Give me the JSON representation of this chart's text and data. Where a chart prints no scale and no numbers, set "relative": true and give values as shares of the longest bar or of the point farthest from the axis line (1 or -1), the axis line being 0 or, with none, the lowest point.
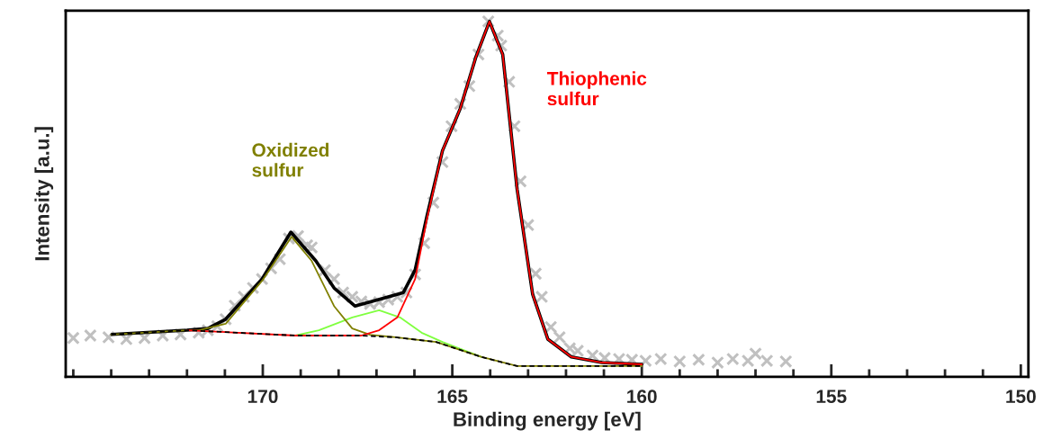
{
  "chart_data": {
    "type": "line",
    "relative": true,
    "xlabel": "Binding energy [eV]",
    "ylabel": "Intensity [a.u.]",
    "xlim": [
      175.2,
      149.8
    ],
    "xticks": [
      {
        "value": 175,
        "label": null
      },
      {
        "value": 174,
        "label": null
      },
      {
        "value": 173,
        "label": null
      },
      {
        "value": 172,
        "label": null
      },
      {
        "value": 171,
        "label": null
      },
      170,
      {
        "value": 169,
        "label": null
      },
      {
        "value": 168,
        "label": null
      },
      {
        "value": 167,
        "label": null
      },
      {
        "value": 166,
        "label": null
      },
      165,
      {
        "value": 164,
        "label": null
      },
      {
        "value": 163,
        "label": null
      },
      {
        "value": 162,
        "label": null
      },
      {
        "value": 161,
        "label": null
      },
      160,
      {
        "value": 159,
        "label": null
      },
      {
        "value": 158,
        "label": null
      },
      {
        "value": 157,
        "label": null
      },
      {
        "value": 156,
        "label": null
      },
      155,
      {
        "value": 154,
        "label": null
      },
      {
        "value": 153,
        "label": null
      },
      {
        "value": 152,
        "label": null
      },
      {
        "value": 151,
        "label": null
      },
      150
    ],
    "grid": false,
    "legend": false,
    "series": [
      {
        "type": "scatter",
        "marker": "cross",
        "color": "#c0c0c0",
        "x": [
          175.0,
          174.55,
          174.07,
          173.6,
          173.12,
          172.64,
          172.17,
          171.69,
          171.45,
          171.2,
          170.98,
          170.74,
          170.5,
          170.26,
          170.02,
          169.78,
          169.55,
          169.31,
          169.07,
          168.83,
          168.71,
          168.36,
          168.12,
          167.88,
          167.64,
          167.4,
          167.17,
          166.93,
          166.69,
          166.45,
          166.21,
          165.98,
          165.74,
          165.5,
          165.26,
          165.02,
          164.79,
          164.55,
          164.31,
          164.05,
          163.8,
          163.71,
          163.5,
          163.36,
          163.2,
          163.0,
          162.8,
          162.64,
          162.4,
          162.17,
          161.9,
          161.69,
          161.3,
          160.98,
          160.6,
          160.26,
          159.9,
          159.5,
          159.0,
          158.5,
          158.0,
          157.6,
          157.2,
          157.0,
          156.7,
          156.2
        ],
        "values": [
          0.109,
          0.116,
          0.111,
          0.106,
          0.109,
          0.116,
          0.119,
          0.124,
          0.131,
          0.142,
          0.162,
          0.2,
          0.225,
          0.25,
          0.275,
          0.305,
          0.331,
          0.389,
          0.396,
          0.37,
          0.364,
          0.3,
          0.275,
          0.237,
          0.225,
          0.212,
          0.205,
          0.21,
          0.217,
          0.225,
          0.237,
          0.288,
          0.376,
          0.49,
          0.604,
          0.705,
          0.768,
          0.818,
          0.907,
          1.0,
          0.96,
          0.932,
          0.83,
          0.705,
          0.55,
          0.427,
          0.29,
          0.225,
          0.14,
          0.111,
          0.08,
          0.073,
          0.06,
          0.053,
          0.05,
          0.048,
          0.045,
          0.05,
          0.043,
          0.048,
          0.04,
          0.05,
          0.045,
          0.065,
          0.045,
          0.043
        ]
      },
      {
        "line_style": "solid",
        "color": "#80ff40",
        "x": [
          169.14,
          168.52,
          167.64,
          166.93,
          166.38,
          165.81,
          165.26,
          164.24
        ],
        "values": [
          0.116,
          0.131,
          0.167,
          0.187,
          0.167,
          0.124,
          0.098,
          0.056
        ]
      },
      {
        "line_style": "solid",
        "color": "#808000",
        "name": "Oxidized\nsulfur",
        "x": [
          174.0,
          172.0,
          171.69,
          170.98,
          170.02,
          169.24,
          168.71,
          168.12,
          167.64,
          167.17,
          166.5,
          165.43,
          164.24,
          163.29,
          160.0
        ],
        "values": [
          0.119,
          0.131,
          0.131,
          0.149,
          0.27,
          0.394,
          0.326,
          0.199,
          0.136,
          0.118,
          0.111,
          0.098,
          0.056,
          0.03,
          0.03
        ]
      },
      {
        "line_style": "solid",
        "color": "#ff0000",
        "name": "Thiophenic\nsulfur",
        "x": [
          172.0,
          169.14,
          167.4,
          166.93,
          166.45,
          165.98,
          165.67,
          165.26,
          164.79,
          164.38,
          164.02,
          163.67,
          163.29,
          162.88,
          162.48,
          161.86,
          161.05,
          160.0
        ],
        "values": [
          0.131,
          0.116,
          0.116,
          0.131,
          0.167,
          0.275,
          0.444,
          0.636,
          0.755,
          0.899,
          1.0,
          0.907,
          0.528,
          0.232,
          0.106,
          0.056,
          0.04,
          0.035
        ]
      },
      {
        "line_style": "solid",
        "color": "#000000",
        "x": [
          173.98,
          172.0,
          171.45,
          170.98,
          170.02,
          169.26,
          168.6,
          168.12,
          167.57,
          166.86,
          166.29,
          165.98,
          165.67,
          165.26,
          164.79,
          164.38,
          164.02,
          163.67,
          163.29,
          162.88,
          162.48,
          161.86,
          161.05,
          160.0
        ],
        "values": [
          0.119,
          0.131,
          0.136,
          0.162,
          0.275,
          0.407,
          0.326,
          0.25,
          0.199,
          0.22,
          0.237,
          0.301,
          0.452,
          0.636,
          0.755,
          0.899,
          1.0,
          0.907,
          0.528,
          0.232,
          0.106,
          0.056,
          0.04,
          0.035
        ]
      },
      {
        "line_style": "dashed",
        "color": "#000000",
        "x": [
          174.0,
          172.0,
          169.14,
          167.4,
          166.5,
          165.43,
          164.24,
          163.29,
          160.0
        ],
        "values": [
          0.119,
          0.131,
          0.116,
          0.116,
          0.111,
          0.098,
          0.056,
          0.03,
          0.03
        ]
      }
    ]
  }
}
